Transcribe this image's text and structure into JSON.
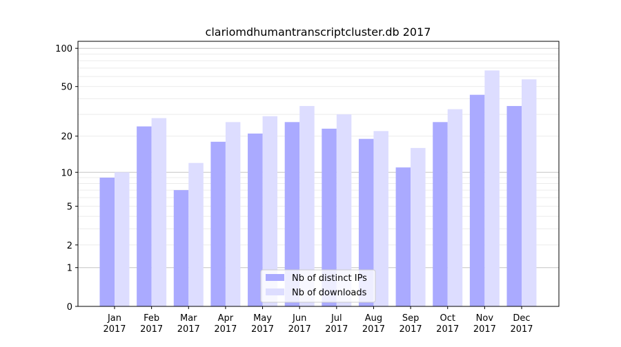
{
  "chart_data": {
    "type": "bar",
    "title": "clariomdhumantranscriptcluster.db 2017",
    "xlabel": "",
    "ylabel": "",
    "yscale": "symlog (log10(1+y))",
    "ylim": [
      0,
      110
    ],
    "yticks": [
      0,
      1,
      2,
      5,
      10,
      20,
      50,
      100
    ],
    "grid": true,
    "legend_position": "bottom-center",
    "categories": [
      "Jan\n2017",
      "Feb\n2017",
      "Mar\n2017",
      "Apr\n2017",
      "May\n2017",
      "Jun\n2017",
      "Jul\n2017",
      "Aug\n2017",
      "Sep\n2017",
      "Oct\n2017",
      "Nov\n2017",
      "Dec\n2017"
    ],
    "series": [
      {
        "name": "Nb of distinct IPs",
        "color": "#aaaaff",
        "values": [
          9,
          24,
          7,
          18,
          21,
          26,
          23,
          19,
          11,
          26,
          43,
          35
        ]
      },
      {
        "name": "Nb of downloads",
        "color": "#ddddff",
        "values": [
          10,
          28,
          12,
          26,
          29,
          35,
          30,
          22,
          16,
          33,
          67,
          57
        ]
      }
    ]
  }
}
